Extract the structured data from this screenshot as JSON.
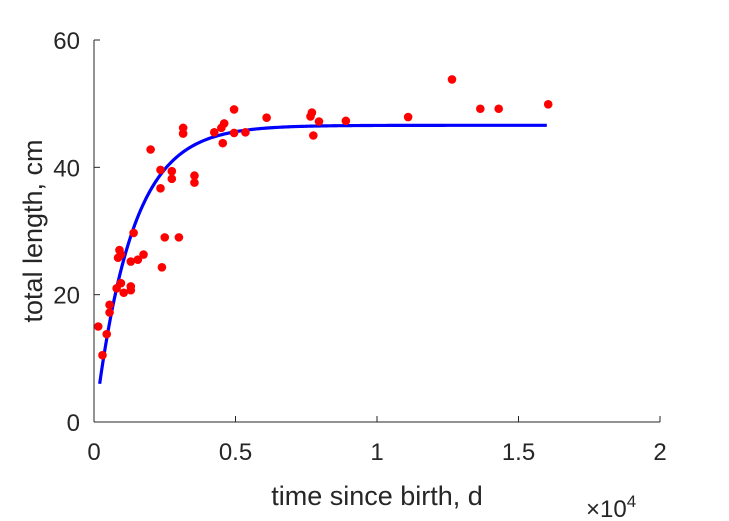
{
  "chart_data": {
    "type": "scatter",
    "xlabel": "time since birth, d",
    "ylabel": "total length, cm",
    "x_exponent_label": "×10",
    "x_exponent_power": "4",
    "xlim": [
      0,
      20000
    ],
    "ylim": [
      0,
      60
    ],
    "x_ticks": [
      0,
      5000,
      10000,
      15000,
      20000
    ],
    "x_tick_labels": [
      "0",
      "0.5",
      "1",
      "1.5",
      "2"
    ],
    "y_ticks": [
      0,
      20,
      40,
      60
    ],
    "y_tick_labels": [
      "0",
      "20",
      "40",
      "60"
    ],
    "grid": false,
    "legend": "none",
    "series": [
      {
        "kind": "points",
        "color": "#ff0000",
        "points": [
          [
            150,
            15.0
          ],
          [
            300,
            10.5
          ],
          [
            450,
            13.8
          ],
          [
            550,
            17.2
          ],
          [
            550,
            18.4
          ],
          [
            800,
            21.0
          ],
          [
            850,
            25.8
          ],
          [
            900,
            27.0
          ],
          [
            950,
            26.3
          ],
          [
            950,
            21.8
          ],
          [
            1050,
            20.3
          ],
          [
            1300,
            25.2
          ],
          [
            1300,
            21.3
          ],
          [
            1300,
            20.7
          ],
          [
            1400,
            29.7
          ],
          [
            1550,
            25.5
          ],
          [
            1750,
            26.3
          ],
          [
            2000,
            42.8
          ],
          [
            2350,
            36.7
          ],
          [
            2350,
            39.6
          ],
          [
            2400,
            24.3
          ],
          [
            2500,
            29.0
          ],
          [
            2750,
            39.4
          ],
          [
            2750,
            38.2
          ],
          [
            3000,
            29.0
          ],
          [
            3150,
            45.3
          ],
          [
            3150,
            46.2
          ],
          [
            3550,
            38.7
          ],
          [
            3550,
            37.6
          ],
          [
            4250,
            45.5
          ],
          [
            4500,
            46.2
          ],
          [
            4550,
            43.8
          ],
          [
            4600,
            46.9
          ],
          [
            4950,
            49.1
          ],
          [
            4950,
            45.4
          ],
          [
            5350,
            45.5
          ],
          [
            6100,
            47.8
          ],
          [
            7650,
            48.0
          ],
          [
            7700,
            48.6
          ],
          [
            7750,
            45.0
          ],
          [
            7950,
            47.2
          ],
          [
            8900,
            47.3
          ],
          [
            11100,
            47.9
          ],
          [
            12650,
            53.8
          ],
          [
            13650,
            49.2
          ],
          [
            14300,
            49.2
          ],
          [
            16050,
            49.9
          ]
        ]
      },
      {
        "kind": "line",
        "color": "#0000ff",
        "model": "von Bertalanffy fit",
        "L_inf": 46.6,
        "L0": 6.0,
        "t0": 200,
        "t_end": 16000,
        "rate": 0.00077
      }
    ]
  }
}
